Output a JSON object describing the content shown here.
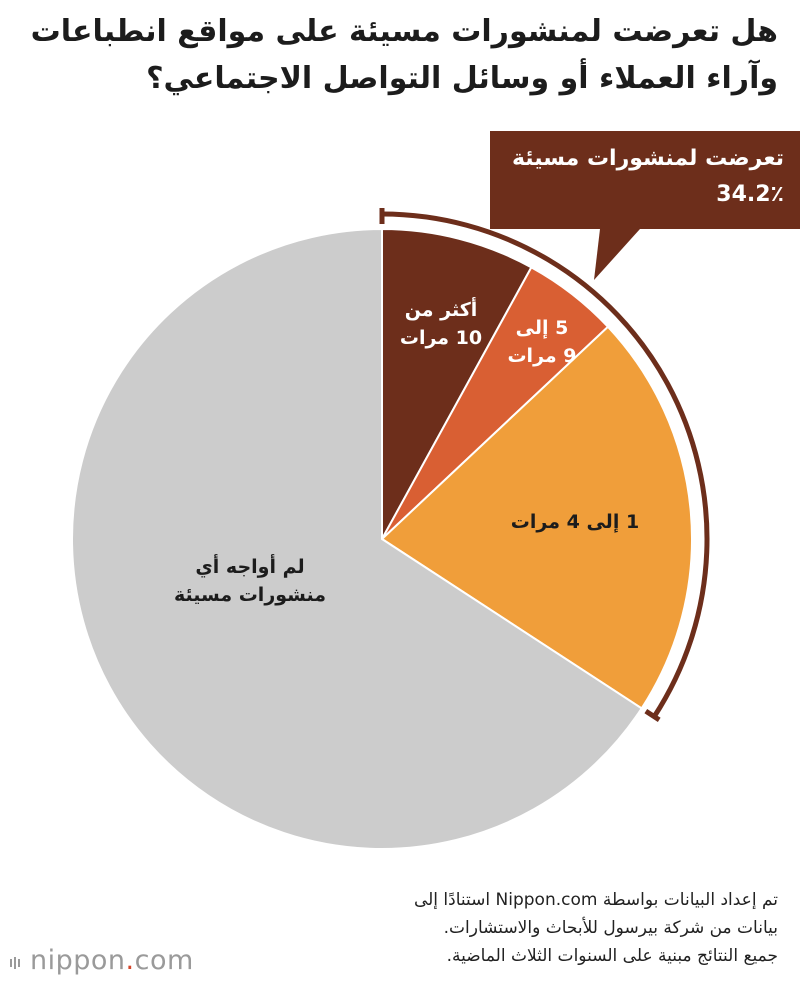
{
  "title": {
    "line1": "هل تعرضت لمنشورات مسيئة على مواقع انطباعات",
    "line2": "وآراء العملاء أو وسائل التواصل الاجتماعي؟"
  },
  "callout": {
    "label": "تعرضت لمنشورات مسيئة",
    "value": "34.2٪"
  },
  "chart_data": {
    "type": "pie",
    "title": "هل تعرضت لمنشورات مسيئة على مواقع انطباعات وآراء العملاء أو وسائل التواصل الاجتماعي؟",
    "exposed_total_percent": 34.2,
    "slices": [
      {
        "label_line1": "أكثر من",
        "label_line2": "10 مرات",
        "value": 8.0,
        "color": "#6d2e1b",
        "text_color": "#ffffff"
      },
      {
        "label_line1": "5  إلى",
        "label_line2": "9 مرات",
        "value": 5.0,
        "color": "#d95f33",
        "text_color": "#ffffff"
      },
      {
        "label_line1": "1 إلى 4 مرات",
        "label_line2": "",
        "value": 21.2,
        "color": "#f09e3a",
        "text_color": "#1c1c1c"
      },
      {
        "label_line1": "لم أواجه أي",
        "label_line2": "منشورات مسيئة",
        "value": 65.8,
        "color": "#cccccc",
        "text_color": "#1c1c1c"
      }
    ],
    "bracket_color": "#6d2e1b"
  },
  "footer": {
    "line1": "تم إعداد البيانات بواسطة Nippon.com استنادًا إلى",
    "line2": "بيانات من شركة بيرسول للأبحاث والاستشارات.",
    "line3": "جميع النتائج مبنية على السنوات الثلاث الماضية."
  },
  "logo": {
    "name": "nippon",
    "dot": ".",
    "suffix": "com"
  }
}
